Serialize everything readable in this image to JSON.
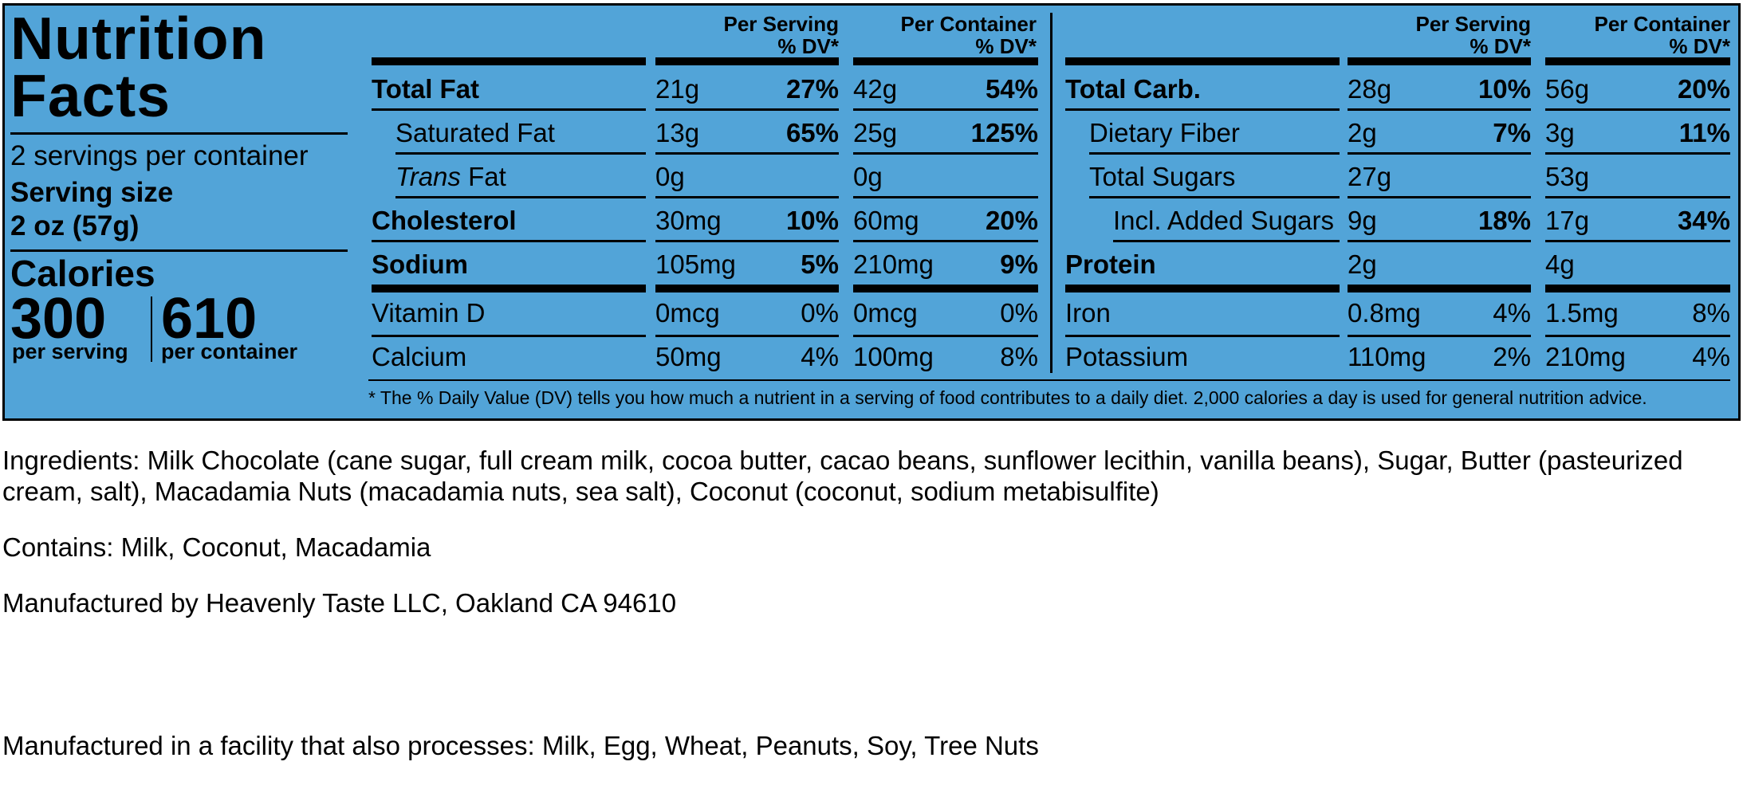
{
  "label": {
    "title_line1": "Nutrition",
    "title_line2": "Facts",
    "servings_per_container": "2 servings per container",
    "serving_size_label": "Serving size",
    "serving_size_value": "2 oz (57g)",
    "calories_label": "Calories",
    "calories_per_serving": "300",
    "calories_per_container": "610",
    "per_serving_caption": "per serving",
    "per_container_caption": "per container",
    "col_headers": {
      "per_serving": "Per Serving",
      "per_container": "Per Container",
      "dv": "% DV*"
    },
    "left_rows": [
      {
        "name": "Total Fat",
        "serv_amt": "21g",
        "serv_dv": "27%",
        "cont_amt": "42g",
        "cont_dv": "54%"
      },
      {
        "name": "Saturated Fat",
        "serv_amt": "13g",
        "serv_dv": "65%",
        "cont_amt": "25g",
        "cont_dv": "125%"
      },
      {
        "name_italic": "Trans",
        "name": " Fat",
        "serv_amt": "0g",
        "serv_dv": "",
        "cont_amt": "0g",
        "cont_dv": ""
      },
      {
        "name": "Cholesterol",
        "serv_amt": "30mg",
        "serv_dv": "10%",
        "cont_amt": "60mg",
        "cont_dv": "20%"
      },
      {
        "name": "Sodium",
        "serv_amt": "105mg",
        "serv_dv": "5%",
        "cont_amt": "210mg",
        "cont_dv": "9%"
      },
      {
        "name": "Vitamin D",
        "serv_amt": "0mcg",
        "serv_dv": "0%",
        "cont_amt": "0mcg",
        "cont_dv": "0%"
      },
      {
        "name": "Calcium",
        "serv_amt": "50mg",
        "serv_dv": "4%",
        "cont_amt": "100mg",
        "cont_dv": "8%"
      }
    ],
    "right_rows": [
      {
        "name": "Total Carb.",
        "serv_amt": "28g",
        "serv_dv": "10%",
        "cont_amt": "56g",
        "cont_dv": "20%"
      },
      {
        "name": "Dietary Fiber",
        "serv_amt": "2g",
        "serv_dv": "7%",
        "cont_amt": "3g",
        "cont_dv": "11%"
      },
      {
        "name": "Total Sugars",
        "serv_amt": "27g",
        "serv_dv": "",
        "cont_amt": "53g",
        "cont_dv": ""
      },
      {
        "name": "Incl. Added Sugars",
        "serv_amt": "9g",
        "serv_dv": "18%",
        "cont_amt": "17g",
        "cont_dv": "34%"
      },
      {
        "name": "Protein",
        "serv_amt": "2g",
        "serv_dv": "",
        "cont_amt": "4g",
        "cont_dv": ""
      },
      {
        "name": "Iron",
        "serv_amt": "0.8mg",
        "serv_dv": "4%",
        "cont_amt": "1.5mg",
        "cont_dv": "8%"
      },
      {
        "name": "Potassium",
        "serv_amt": "110mg",
        "serv_dv": "2%",
        "cont_amt": "210mg",
        "cont_dv": "4%"
      }
    ],
    "footnote": "* The % Daily Value (DV) tells you how much a nutrient in a serving of food contributes to a daily diet. 2,000 calories a day is used for general nutrition advice.",
    "colors": {
      "background": "#52a4d8",
      "ink": "#000000"
    }
  },
  "below": {
    "ingredients": "Ingredients: Milk Chocolate (cane sugar, full cream milk, cocoa butter, cacao beans, sunflower lecithin, vanilla beans), Sugar, Butter (pasteurized cream, salt), Macadamia Nuts (macadamia nuts, sea salt), Coconut (coconut, sodium metabisulfite)",
    "contains": "Contains: Milk, Coconut, Macadamia",
    "manufacturer": "Manufactured by Heavenly Taste LLC, Oakland CA 94610",
    "facility": "Manufactured in a facility that also processes: Milk, Egg, Wheat, Peanuts, Soy, Tree Nuts"
  }
}
